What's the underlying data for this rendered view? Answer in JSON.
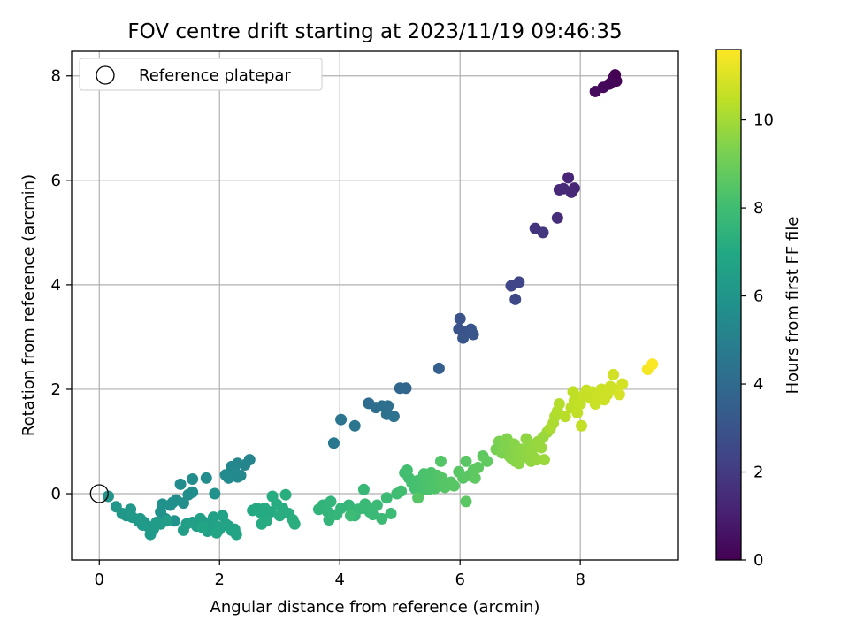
{
  "chart_data": {
    "type": "scatter",
    "title": "FOV centre drift starting at 2023/11/19 09:46:35",
    "xlabel": "Angular distance from reference (arcmin)",
    "ylabel": "Rotation from reference (arcmin)",
    "xlim": [
      -0.46,
      9.63
    ],
    "ylim": [
      -1.27,
      8.47
    ],
    "xticks": [
      0,
      2,
      4,
      6,
      8
    ],
    "yticks": [
      0,
      2,
      4,
      6,
      8
    ],
    "grid": true,
    "legend": {
      "placement": "top-left",
      "entries": [
        "Reference platepar"
      ]
    },
    "reference_point": {
      "x": 0.0,
      "y": 0.0
    },
    "colorbar": {
      "label": "Hours from first FF file",
      "colormap": "viridis",
      "range": [
        0,
        11.6
      ],
      "ticks": [
        0,
        2,
        4,
        6,
        8,
        10
      ]
    },
    "points": [
      [
        8.58,
        8.02,
        0.0
      ],
      [
        8.55,
        7.96,
        0.05
      ],
      [
        8.6,
        7.9,
        0.08
      ],
      [
        8.52,
        7.88,
        0.12
      ],
      [
        8.48,
        7.84,
        0.18
      ],
      [
        8.38,
        7.78,
        0.25
      ],
      [
        8.25,
        7.7,
        0.35
      ],
      [
        7.8,
        6.05,
        1.2
      ],
      [
        7.9,
        5.85,
        1.25
      ],
      [
        7.85,
        5.77,
        1.3
      ],
      [
        7.65,
        5.82,
        1.35
      ],
      [
        7.72,
        5.84,
        1.38
      ],
      [
        7.62,
        5.28,
        1.5
      ],
      [
        7.25,
        5.08,
        1.75
      ],
      [
        7.38,
        5.0,
        1.8
      ],
      [
        6.85,
        3.98,
        2.4
      ],
      [
        6.98,
        4.05,
        2.45
      ],
      [
        6.92,
        3.72,
        2.55
      ],
      [
        6.0,
        3.35,
        2.9
      ],
      [
        5.98,
        3.15,
        2.95
      ],
      [
        6.1,
        3.1,
        3.0
      ],
      [
        6.18,
        3.15,
        3.05
      ],
      [
        6.05,
        2.98,
        3.1
      ],
      [
        6.22,
        3.05,
        3.12
      ],
      [
        5.65,
        2.4,
        3.5
      ],
      [
        5.1,
        2.02,
        3.8
      ],
      [
        5.0,
        2.02,
        3.85
      ],
      [
        4.48,
        1.73,
        4.1
      ],
      [
        4.6,
        1.65,
        4.15
      ],
      [
        4.7,
        1.68,
        4.2
      ],
      [
        4.8,
        1.68,
        4.25
      ],
      [
        4.78,
        1.52,
        4.3
      ],
      [
        4.9,
        1.48,
        4.35
      ],
      [
        4.02,
        1.42,
        4.5
      ],
      [
        4.25,
        1.3,
        4.55
      ],
      [
        3.9,
        0.97,
        4.65
      ],
      [
        2.5,
        0.65,
        5.2
      ],
      [
        2.42,
        0.55,
        5.25
      ],
      [
        2.3,
        0.58,
        5.3
      ],
      [
        2.2,
        0.52,
        5.35
      ],
      [
        2.25,
        0.42,
        5.38
      ],
      [
        2.35,
        0.35,
        5.4
      ],
      [
        2.3,
        0.32,
        5.42
      ],
      [
        2.18,
        0.35,
        5.45
      ],
      [
        2.15,
        0.3,
        5.48
      ],
      [
        2.1,
        0.36,
        5.5
      ],
      [
        1.78,
        0.3,
        5.55
      ],
      [
        1.55,
        0.28,
        5.6
      ],
      [
        1.35,
        0.18,
        5.62
      ],
      [
        1.55,
        0.03,
        5.65
      ],
      [
        1.48,
        -0.02,
        5.68
      ],
      [
        1.4,
        -0.18,
        5.7
      ],
      [
        1.28,
        -0.12,
        5.72
      ],
      [
        1.22,
        -0.17,
        5.74
      ],
      [
        1.18,
        -0.22,
        5.76
      ],
      [
        1.05,
        -0.2,
        5.78
      ],
      [
        1.02,
        -0.35,
        5.8
      ],
      [
        1.1,
        -0.48,
        5.82
      ],
      [
        1.25,
        -0.52,
        5.84
      ],
      [
        1.92,
        0.0,
        5.86
      ],
      [
        0.15,
        -0.05,
        6.0
      ],
      [
        0.28,
        -0.25,
        6.05
      ],
      [
        0.38,
        -0.38,
        6.1
      ],
      [
        0.45,
        -0.42,
        6.12
      ],
      [
        0.52,
        -0.3,
        6.15
      ],
      [
        0.55,
        -0.45,
        6.18
      ],
      [
        0.65,
        -0.52,
        6.2
      ],
      [
        0.72,
        -0.6,
        6.22
      ],
      [
        0.68,
        -0.48,
        6.24
      ],
      [
        0.75,
        -0.55,
        6.26
      ],
      [
        0.8,
        -0.62,
        6.28
      ],
      [
        0.85,
        -0.78,
        6.3
      ],
      [
        0.9,
        -0.68,
        6.32
      ],
      [
        0.95,
        -0.55,
        6.34
      ],
      [
        1.02,
        -0.58,
        6.36
      ],
      [
        1.12,
        -0.52,
        6.38
      ],
      [
        1.45,
        -0.58,
        6.45
      ],
      [
        1.4,
        -0.7,
        6.48
      ],
      [
        1.55,
        -0.55,
        6.5
      ],
      [
        1.62,
        -0.62,
        6.52
      ],
      [
        1.68,
        -0.48,
        6.54
      ],
      [
        1.75,
        -0.55,
        6.56
      ],
      [
        1.8,
        -0.72,
        6.58
      ],
      [
        1.85,
        -0.6,
        6.6
      ],
      [
        1.9,
        -0.45,
        6.62
      ],
      [
        1.95,
        -0.62,
        6.64
      ],
      [
        2.0,
        -0.68,
        6.66
      ],
      [
        2.05,
        -0.42,
        6.68
      ],
      [
        2.1,
        -0.58,
        6.7
      ],
      [
        2.15,
        -0.62,
        6.72
      ],
      [
        2.2,
        -0.7,
        6.74
      ],
      [
        2.25,
        -0.68,
        6.76
      ],
      [
        2.28,
        -0.78,
        6.78
      ],
      [
        1.72,
        -0.65,
        6.8
      ],
      [
        1.95,
        -0.75,
        6.82
      ],
      [
        2.55,
        -0.32,
        7.0
      ],
      [
        2.62,
        -0.28,
        7.02
      ],
      [
        2.7,
        -0.38,
        7.04
      ],
      [
        2.75,
        -0.28,
        7.06
      ],
      [
        2.85,
        -0.35,
        7.08
      ],
      [
        2.7,
        -0.58,
        7.1
      ],
      [
        2.78,
        -0.52,
        7.12
      ],
      [
        2.88,
        -0.05,
        7.14
      ],
      [
        2.95,
        -0.2,
        7.16
      ],
      [
        3.05,
        -0.28,
        7.18
      ],
      [
        3.0,
        -0.42,
        7.2
      ],
      [
        3.15,
        -0.38,
        7.22
      ],
      [
        3.22,
        -0.5,
        7.24
      ],
      [
        3.25,
        -0.58,
        7.26
      ],
      [
        3.1,
        -0.02,
        7.28
      ],
      [
        3.65,
        -0.3,
        7.5
      ],
      [
        3.72,
        -0.22,
        7.52
      ],
      [
        3.8,
        -0.35,
        7.54
      ],
      [
        3.85,
        -0.15,
        7.56
      ],
      [
        3.82,
        -0.5,
        7.58
      ],
      [
        3.95,
        -0.4,
        7.6
      ],
      [
        4.02,
        -0.28,
        7.62
      ],
      [
        4.15,
        -0.22,
        7.64
      ],
      [
        4.2,
        -0.35,
        7.66
      ],
      [
        4.25,
        -0.42,
        7.68
      ],
      [
        4.3,
        -0.3,
        7.7
      ],
      [
        4.38,
        -0.28,
        7.72
      ],
      [
        4.4,
        0.08,
        7.74
      ],
      [
        4.42,
        -0.2,
        7.76
      ],
      [
        4.5,
        -0.35,
        7.78
      ],
      [
        4.55,
        -0.4,
        7.8
      ],
      [
        4.62,
        -0.22,
        7.82
      ],
      [
        4.7,
        -0.48,
        7.84
      ],
      [
        4.78,
        -0.08,
        7.86
      ],
      [
        4.85,
        -0.38,
        7.88
      ],
      [
        4.18,
        -0.42,
        7.9
      ],
      [
        4.95,
        0.0,
        8.0
      ],
      [
        5.02,
        0.05,
        8.02
      ],
      [
        5.08,
        0.4,
        8.04
      ],
      [
        5.12,
        0.45,
        8.06
      ],
      [
        5.15,
        0.3,
        8.08
      ],
      [
        5.2,
        0.2,
        8.1
      ],
      [
        5.25,
        0.1,
        8.12
      ],
      [
        5.3,
        0.25,
        8.14
      ],
      [
        5.32,
        0.15,
        8.16
      ],
      [
        5.35,
        0.05,
        8.18
      ],
      [
        5.38,
        0.3,
        8.2
      ],
      [
        5.4,
        0.38,
        8.22
      ],
      [
        5.42,
        0.22,
        8.24
      ],
      [
        5.45,
        0.15,
        8.26
      ],
      [
        5.48,
        0.08,
        8.28
      ],
      [
        5.5,
        0.3,
        8.3
      ],
      [
        5.52,
        0.4,
        8.32
      ],
      [
        5.55,
        0.2,
        8.34
      ],
      [
        5.58,
        0.1,
        8.36
      ],
      [
        5.6,
        0.25,
        8.38
      ],
      [
        5.62,
        0.35,
        8.4
      ],
      [
        5.65,
        0.15,
        8.42
      ],
      [
        5.68,
        0.62,
        8.44
      ],
      [
        5.7,
        0.3,
        8.46
      ],
      [
        5.3,
        -0.08,
        8.48
      ],
      [
        5.75,
        0.12,
        8.5
      ],
      [
        5.85,
        0.22,
        8.52
      ],
      [
        5.9,
        0.15,
        8.54
      ],
      [
        5.98,
        0.42,
        8.56
      ],
      [
        6.05,
        0.3,
        8.58
      ],
      [
        6.1,
        0.62,
        8.6
      ],
      [
        6.1,
        -0.15,
        8.62
      ],
      [
        6.15,
        0.35,
        8.64
      ],
      [
        6.22,
        0.45,
        8.66
      ],
      [
        6.25,
        0.3,
        8.68
      ],
      [
        6.3,
        0.5,
        8.7
      ],
      [
        6.38,
        0.72,
        8.72
      ],
      [
        6.45,
        0.62,
        8.74
      ],
      [
        6.6,
        0.85,
        9.2
      ],
      [
        6.65,
        1.0,
        9.25
      ],
      [
        6.7,
        0.78,
        9.3
      ],
      [
        6.75,
        0.9,
        9.35
      ],
      [
        6.78,
        1.05,
        9.4
      ],
      [
        6.82,
        0.72,
        9.42
      ],
      [
        6.85,
        0.68,
        9.45
      ],
      [
        6.88,
        0.82,
        9.48
      ],
      [
        6.9,
        0.95,
        9.5
      ],
      [
        6.92,
        0.62,
        9.52
      ],
      [
        6.95,
        0.75,
        9.54
      ],
      [
        6.98,
        0.58,
        9.56
      ],
      [
        7.02,
        0.85,
        9.58
      ],
      [
        7.05,
        0.7,
        9.6
      ],
      [
        7.1,
        1.05,
        9.62
      ],
      [
        7.12,
        0.78,
        9.64
      ],
      [
        7.15,
        0.92,
        9.66
      ],
      [
        7.18,
        0.62,
        9.68
      ],
      [
        7.2,
        0.85,
        9.7
      ],
      [
        7.22,
        0.7,
        9.72
      ],
      [
        7.25,
        0.95,
        9.74
      ],
      [
        7.28,
        0.65,
        9.76
      ],
      [
        7.3,
        1.0,
        9.78
      ],
      [
        7.35,
        0.88,
        9.8
      ],
      [
        7.38,
        1.08,
        9.82
      ],
      [
        7.4,
        0.65,
        9.84
      ],
      [
        7.45,
        1.18,
        9.86
      ],
      [
        7.5,
        1.25,
        10.1
      ],
      [
        7.55,
        1.35,
        10.15
      ],
      [
        7.58,
        1.48,
        10.2
      ],
      [
        7.62,
        1.58,
        10.25
      ],
      [
        7.65,
        1.72,
        10.3
      ],
      [
        7.75,
        1.48,
        10.35
      ],
      [
        7.85,
        1.65,
        10.4
      ],
      [
        7.88,
        1.95,
        10.45
      ],
      [
        7.9,
        1.78,
        10.48
      ],
      [
        7.95,
        1.55,
        10.5
      ],
      [
        8.0,
        1.72,
        10.52
      ],
      [
        8.02,
        1.3,
        10.55
      ],
      [
        8.05,
        1.88,
        10.58
      ],
      [
        8.1,
        1.98,
        10.6
      ],
      [
        8.15,
        1.85,
        10.62
      ],
      [
        8.2,
        1.95,
        10.64
      ],
      [
        8.25,
        1.72,
        10.66
      ],
      [
        8.3,
        1.85,
        10.68
      ],
      [
        8.35,
        2.0,
        10.7
      ],
      [
        8.4,
        1.8,
        10.72
      ],
      [
        8.45,
        1.9,
        10.74
      ],
      [
        8.5,
        2.05,
        10.76
      ],
      [
        8.55,
        2.28,
        10.78
      ],
      [
        8.62,
        1.98,
        10.8
      ],
      [
        8.7,
        2.1,
        10.85
      ],
      [
        8.65,
        1.9,
        10.88
      ],
      [
        9.12,
        2.38,
        11.4
      ],
      [
        9.2,
        2.48,
        11.55
      ]
    ]
  }
}
